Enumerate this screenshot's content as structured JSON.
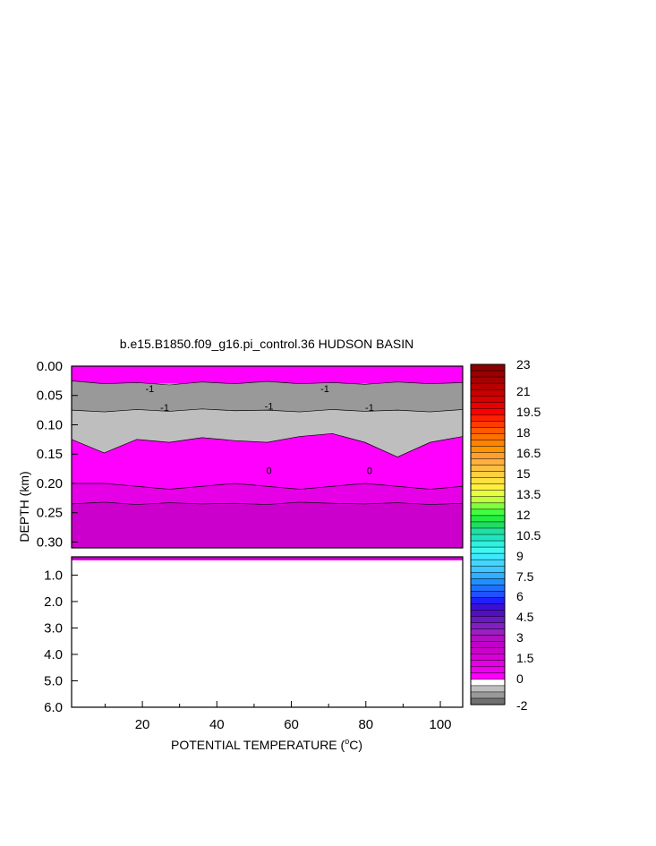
{
  "chart_data": {
    "type": "heatmap",
    "title": "b.e15.B1850.f09_g16.pi_control.36 HUDSON BASIN",
    "xlabel": "POTENTIAL TEMPERATURE (",
    "xlabel_sup": "o",
    "xlabel_end": "C)",
    "ylabel": "DEPTH (km)",
    "x_range": [
      1,
      106
    ],
    "x_ticks": [
      "20",
      "40",
      "60",
      "80",
      "100"
    ],
    "x_tick_values": [
      20,
      40,
      60,
      80,
      100
    ],
    "upper_panel": {
      "y_range": [
        0.0,
        0.31
      ],
      "y_ticks": [
        "0.00",
        "0.05",
        "0.10",
        "0.15",
        "0.20",
        "0.25",
        "0.30"
      ],
      "y_tick_values": [
        0.0,
        0.05,
        0.1,
        0.15,
        0.2,
        0.25,
        0.3
      ]
    },
    "lower_panel": {
      "y_range": [
        0.31,
        6.0
      ],
      "y_ticks": [
        "1.0",
        "2.0",
        "3.0",
        "4.0",
        "5.0",
        "6.0"
      ],
      "y_tick_values": [
        1.0,
        2.0,
        3.0,
        4.0,
        5.0,
        6.0
      ]
    },
    "contour_labels": [
      {
        "text": "-1",
        "x": 22,
        "y": 0.038
      },
      {
        "text": "-1",
        "x": 69,
        "y": 0.038
      },
      {
        "text": "-1",
        "x": 26,
        "y": 0.07
      },
      {
        "text": "-1",
        "x": 54,
        "y": 0.068
      },
      {
        "text": "-1",
        "x": 81,
        "y": 0.07
      },
      {
        "text": "0",
        "x": 54,
        "y": 0.178
      },
      {
        "text": "0",
        "x": 81,
        "y": 0.178
      }
    ],
    "bands": [
      {
        "name": "-1.5 to -1",
        "color": "#999999",
        "top": [
          0.025,
          0.03,
          0.028,
          0.032,
          0.027,
          0.03,
          0.026,
          0.03,
          0.028,
          0.031,
          0.027,
          0.03,
          0.028
        ],
        "bottom": [
          0.075,
          0.078,
          0.074,
          0.077,
          0.073,
          0.076,
          0.075,
          0.078,
          0.074,
          0.077,
          0.075,
          0.078,
          0.074
        ]
      },
      {
        "name": "-1 to -0.5",
        "color": "#bebebe",
        "top": [
          0.075,
          0.078,
          0.074,
          0.077,
          0.073,
          0.076,
          0.075,
          0.078,
          0.074,
          0.077,
          0.075,
          0.078,
          0.074
        ],
        "bottom": [
          0.125,
          0.148,
          0.125,
          0.13,
          0.122,
          0.127,
          0.13,
          0.12,
          0.115,
          0.13,
          0.155,
          0.13,
          0.12
        ]
      },
      {
        "name": "0 to 0.25",
        "color": "#ff00ff",
        "top": [
          0.125,
          0.148,
          0.125,
          0.13,
          0.122,
          0.127,
          0.13,
          0.12,
          0.115,
          0.13,
          0.155,
          0.13,
          0.12
        ],
        "bottom": [
          0.2,
          0.2,
          0.205,
          0.21,
          0.205,
          0.2,
          0.205,
          0.21,
          0.205,
          0.2,
          0.205,
          0.21,
          0.205
        ]
      },
      {
        "name": "0.5 to 0.75",
        "color": "#e600e6",
        "top": [
          0.2,
          0.2,
          0.205,
          0.21,
          0.205,
          0.2,
          0.205,
          0.21,
          0.205,
          0.2,
          0.205,
          0.21,
          0.205
        ],
        "bottom": [
          0.235,
          0.232,
          0.236,
          0.233,
          0.235,
          0.234,
          0.236,
          0.232,
          0.234,
          0.235,
          0.233,
          0.236,
          0.234
        ]
      },
      {
        "name": "0.75 to 1",
        "color": "#cc00cc",
        "top": [
          0.235,
          0.232,
          0.236,
          0.233,
          0.235,
          0.234,
          0.236,
          0.232,
          0.234,
          0.235,
          0.233,
          0.236,
          0.234
        ],
        "bottom": [
          0.31,
          0.31,
          0.31,
          0.31,
          0.31,
          0.31,
          0.31,
          0.31,
          0.31,
          0.31,
          0.31,
          0.31,
          0.31
        ]
      }
    ],
    "colorbar": {
      "labels": [
        "23",
        "21",
        "19.5",
        "18",
        "16.5",
        "15",
        "13.5",
        "12",
        "10.5",
        "9",
        "7.5",
        "6",
        "4.5",
        "3",
        "1.5",
        "0",
        "-2"
      ],
      "colors_top_to_bottom": [
        "#8b0000",
        "#990000",
        "#a80000",
        "#b80000",
        "#c80000",
        "#d80000",
        "#e80000",
        "#ff0000",
        "#ff2000",
        "#ff3c00",
        "#ff5a00",
        "#ff7000",
        "#ff8200",
        "#ff9600",
        "#ffa030",
        "#ffb040",
        "#ffc040",
        "#ffd040",
        "#ffe040",
        "#fff040",
        "#e6ff40",
        "#c0ff40",
        "#80ff40",
        "#40ff40",
        "#20ee40",
        "#20dd60",
        "#20e0a0",
        "#20e6c0",
        "#30f0e0",
        "#40f8f0",
        "#40e8ff",
        "#40d8ff",
        "#40c8ff",
        "#30b0ff",
        "#2090ff",
        "#2070ff",
        "#2050ff",
        "#2020ff",
        "#3a10d8",
        "#5010c0",
        "#6a18c0",
        "#8020c0",
        "#9a20c0",
        "#b010c0",
        "#c000c8",
        "#cc00cc",
        "#d800d8",
        "#e600e6",
        "#f000f0",
        "#ff00ff",
        "#ffffff",
        "#bebebe",
        "#999999",
        "#707070"
      ]
    }
  }
}
